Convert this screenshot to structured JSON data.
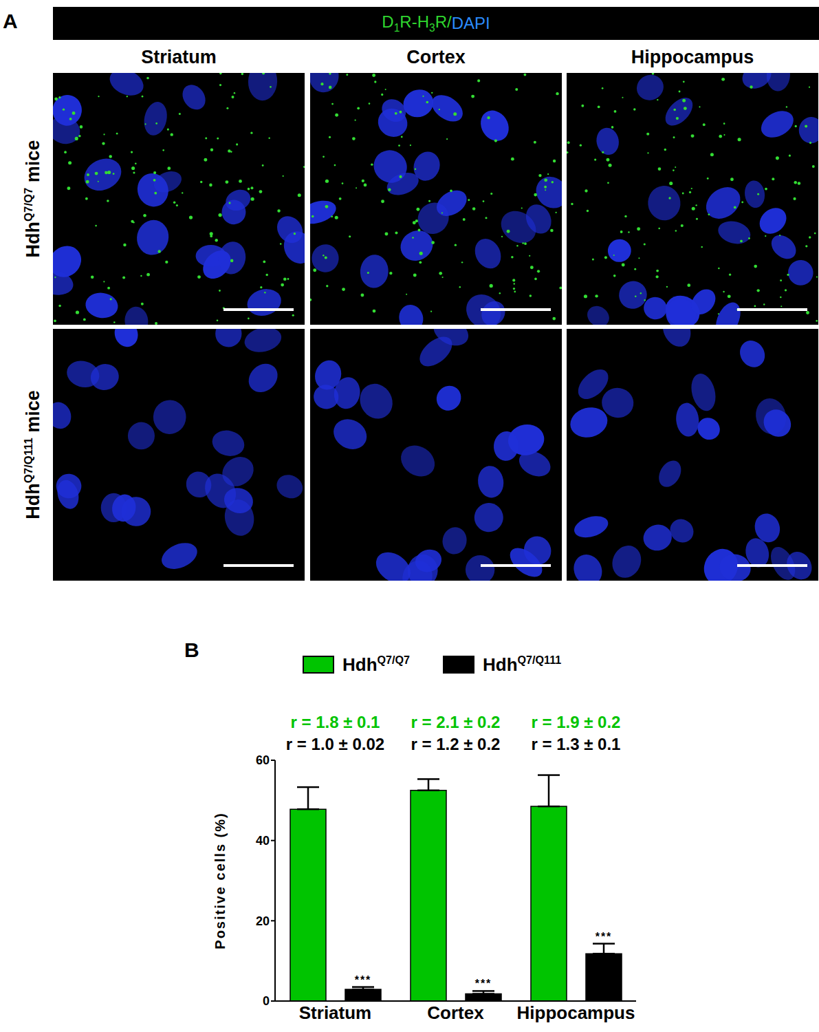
{
  "panel_a": {
    "label": "A",
    "stain": [
      {
        "text": "D1R-H3R/",
        "color": "#2fd62f"
      },
      {
        "text": "DAPI",
        "color": "#2b8cff"
      }
    ],
    "columns": [
      "Striatum",
      "Cortex",
      "Hippocampus"
    ],
    "rows": [
      "HdhQ7/Q7 mice",
      "HdhQ7/Q111 mice"
    ]
  },
  "panel_b_label": "B",
  "chart_data": {
    "type": "bar",
    "categories": [
      "Striatum",
      "Cortex",
      "Hippocampus"
    ],
    "y_label": "Positive cells (%)",
    "ylim": [
      0,
      60
    ],
    "yticks": [
      0,
      20,
      40,
      60
    ],
    "grid": false,
    "legend": "top",
    "series": [
      {
        "name": "HdhQ7/Q7",
        "color": "#00c400",
        "values": [
          47.8,
          52.5,
          48.5
        ],
        "errors": [
          5.5,
          2.8,
          7.8
        ],
        "annotations": [
          "r = 1.8 ± 0.1",
          "r = 2.1 ± 0.2",
          "r = 1.9 ± 0.2"
        ]
      },
      {
        "name": "HdhQ7/Q111",
        "color": "#000000",
        "values": [
          2.9,
          1.8,
          11.8
        ],
        "errors": [
          0.6,
          0.7,
          2.5
        ],
        "annotations": [
          "r = 1.0 ± 0.02",
          "r = 1.2 ± 0.2",
          "r = 1.3 ± 0.1"
        ],
        "significance": [
          "***",
          "***",
          "***"
        ]
      }
    ]
  }
}
